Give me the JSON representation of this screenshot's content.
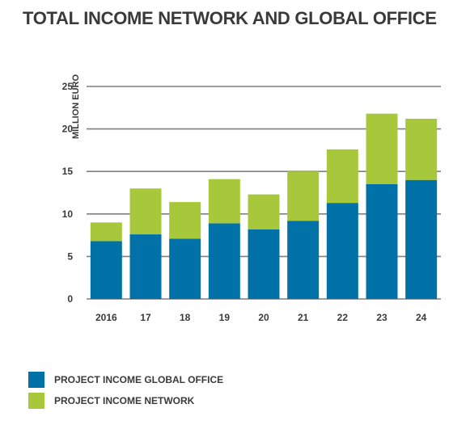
{
  "chart_data": {
    "type": "bar",
    "stacked": true,
    "title": "TOTAL INCOME NETWORK AND GLOBAL OFFICE",
    "ylabel": "MILLION EURO",
    "xlabel": "",
    "categories": [
      "2016",
      "17",
      "18",
      "19",
      "20",
      "21",
      "22",
      "23",
      "24"
    ],
    "series": [
      {
        "name": "PROJECT INCOME GLOBAL OFFICE",
        "color": "#0072a8",
        "values": [
          6.8,
          7.6,
          7.1,
          8.9,
          8.2,
          9.2,
          11.3,
          13.5,
          14.0
        ]
      },
      {
        "name": "PROJECT INCOME NETWORK",
        "color": "#a8c83c",
        "values": [
          2.2,
          5.4,
          4.3,
          5.2,
          4.1,
          5.8,
          6.3,
          8.3,
          7.2
        ]
      }
    ],
    "ylim": [
      0,
      25
    ],
    "yticks": [
      0,
      5,
      10,
      15,
      20,
      25
    ],
    "grid": true,
    "legend_position": "bottom-left"
  }
}
